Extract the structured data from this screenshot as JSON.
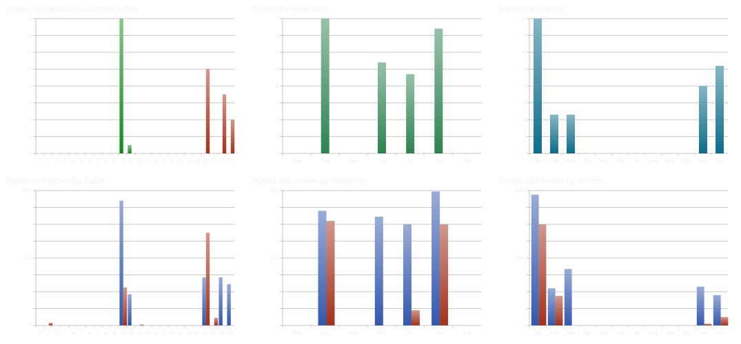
{
  "colors": {
    "green": "#138a1c",
    "red": "#a2321c",
    "mint": "#2e8352",
    "teal": "#0f6c8a",
    "blue": "#3458ad",
    "grid": "#b4b4b4"
  },
  "chart_data": [
    {
      "type": "bar",
      "title": "Strikes by hours (Asia,Europe,USA)",
      "categories": [
        "0",
        "1",
        "2",
        "3",
        "4",
        "5",
        "6",
        "7",
        "8",
        "9",
        "10",
        "11",
        "12",
        "13",
        "14",
        "15",
        "16",
        "17",
        "18",
        "19",
        "20",
        "21",
        "22",
        "23"
      ],
      "series": [
        {
          "color": "green",
          "values": [
            0,
            0,
            0,
            0,
            0,
            0,
            0,
            0,
            0,
            0,
            16,
            1,
            0,
            0,
            0,
            0,
            0,
            0,
            0,
            0,
            0,
            0,
            0,
            0
          ]
        },
        {
          "color": "red",
          "values": [
            0,
            0,
            0,
            0,
            0,
            0,
            0,
            0,
            0,
            0,
            0,
            0,
            0,
            0,
            0,
            0,
            0,
            0,
            0,
            0,
            10,
            0,
            7,
            4
          ]
        }
      ],
      "ylim": [
        0,
        16
      ],
      "y_ticks": [
        "0",
        "2",
        "4",
        "6",
        "8",
        "10",
        "12",
        "14",
        "16"
      ],
      "grid": true
    },
    {
      "type": "bar",
      "title": "Strikes by weekdays",
      "categories": [
        "Mon",
        "Tue",
        "Wed",
        "Thu",
        "Fri",
        "Sat",
        "Sun"
      ],
      "series": [
        {
          "color": "mint",
          "values": [
            0,
            8,
            0,
            5.4,
            4.7,
            7.4,
            0
          ]
        }
      ],
      "ylim": [
        0,
        8
      ],
      "y_ticks": [
        "0",
        "1",
        "2",
        "3",
        "4",
        "5",
        "6",
        "7",
        "8"
      ],
      "grid": true
    },
    {
      "type": "bar",
      "title": "Strikes by months",
      "categories": [
        "Jan",
        "Feb",
        "Mar",
        "Apr",
        "May",
        "Jun",
        "Jul",
        "Aug",
        "Sep",
        "Oct",
        "Nov",
        "Dec"
      ],
      "series": [
        {
          "color": "teal",
          "values": [
            8,
            2.3,
            2.3,
            0,
            0,
            0,
            0,
            0,
            0,
            0,
            4,
            5.2
          ]
        }
      ],
      "ylim": [
        0,
        8
      ],
      "y_ticks": [
        "0",
        "1",
        "2",
        "3",
        "4",
        "5",
        "6",
        "7",
        "8"
      ],
      "grid": true
    },
    {
      "type": "bar",
      "title": "Profits and losses by hours",
      "categories": [
        "0",
        "1",
        "2",
        "3",
        "4",
        "5",
        "6",
        "7",
        "8",
        "9",
        "10",
        "11",
        "12",
        "13",
        "14",
        "15",
        "16",
        "17",
        "18",
        "19",
        "20",
        "21",
        "22",
        "23"
      ],
      "series": [
        {
          "color": "blue",
          "values": [
            0,
            0,
            0,
            0,
            0,
            0,
            0,
            0,
            0,
            0,
            1480,
            370,
            0,
            0,
            0,
            0,
            0,
            0,
            0,
            0,
            570,
            0,
            570,
            490
          ]
        },
        {
          "color": "red",
          "values": [
            0,
            30,
            0,
            0,
            0,
            0,
            0,
            0,
            0,
            0,
            450,
            0,
            10,
            0,
            0,
            0,
            0,
            0,
            0,
            0,
            1100,
            90,
            0,
            0
          ]
        }
      ],
      "ylim": [
        0,
        1600
      ],
      "y_ticks": [
        "0",
        "",
        "",
        "",
        "800",
        "",
        "",
        "",
        "1600"
      ],
      "grid": true
    },
    {
      "type": "bar",
      "title": "Profits and losses by weekdays",
      "categories": [
        "Mon",
        "Tue",
        "Wed",
        "Thu",
        "Fri",
        "Sat",
        "Sun"
      ],
      "series": [
        {
          "color": "blue",
          "values": [
            0,
            680,
            0,
            645,
            600,
            795,
            0
          ]
        },
        {
          "color": "red",
          "values": [
            0,
            620,
            0,
            0,
            90,
            600,
            0
          ]
        }
      ],
      "ylim": [
        0,
        800
      ],
      "y_ticks": [
        "0",
        "",
        "",
        "",
        "400",
        "",
        "",
        "",
        "800"
      ],
      "grid": true
    },
    {
      "type": "bar",
      "title": "Profits and losses by months",
      "categories": [
        "Jan",
        "Feb",
        "Mar",
        "Apr",
        "May",
        "Jun",
        "Jul",
        "Aug",
        "Sep",
        "Oct",
        "Nov",
        "Dec"
      ],
      "series": [
        {
          "color": "blue",
          "values": [
            1550,
            440,
            670,
            0,
            0,
            0,
            0,
            0,
            0,
            0,
            460,
            360
          ]
        },
        {
          "color": "red",
          "values": [
            1200,
            350,
            0,
            0,
            0,
            0,
            0,
            0,
            0,
            0,
            20,
            100
          ]
        }
      ],
      "ylim": [
        0,
        1600
      ],
      "y_ticks": [
        "0",
        "",
        "",
        "",
        "800",
        "",
        "",
        "",
        "1600"
      ],
      "grid": true
    }
  ]
}
